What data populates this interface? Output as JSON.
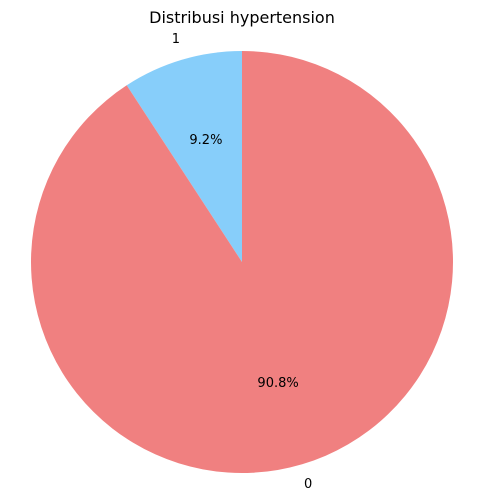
{
  "chart_data": {
    "type": "pie",
    "title": "Distribusi hypertension",
    "categories": [
      "1",
      "0"
    ],
    "values": [
      9.2,
      90.8
    ],
    "percent_labels": [
      "9.2%",
      "90.8%"
    ],
    "colors": [
      "#87cefa",
      "#f08080"
    ],
    "start_angle_deg": 90,
    "direction": "counterclockwise"
  }
}
